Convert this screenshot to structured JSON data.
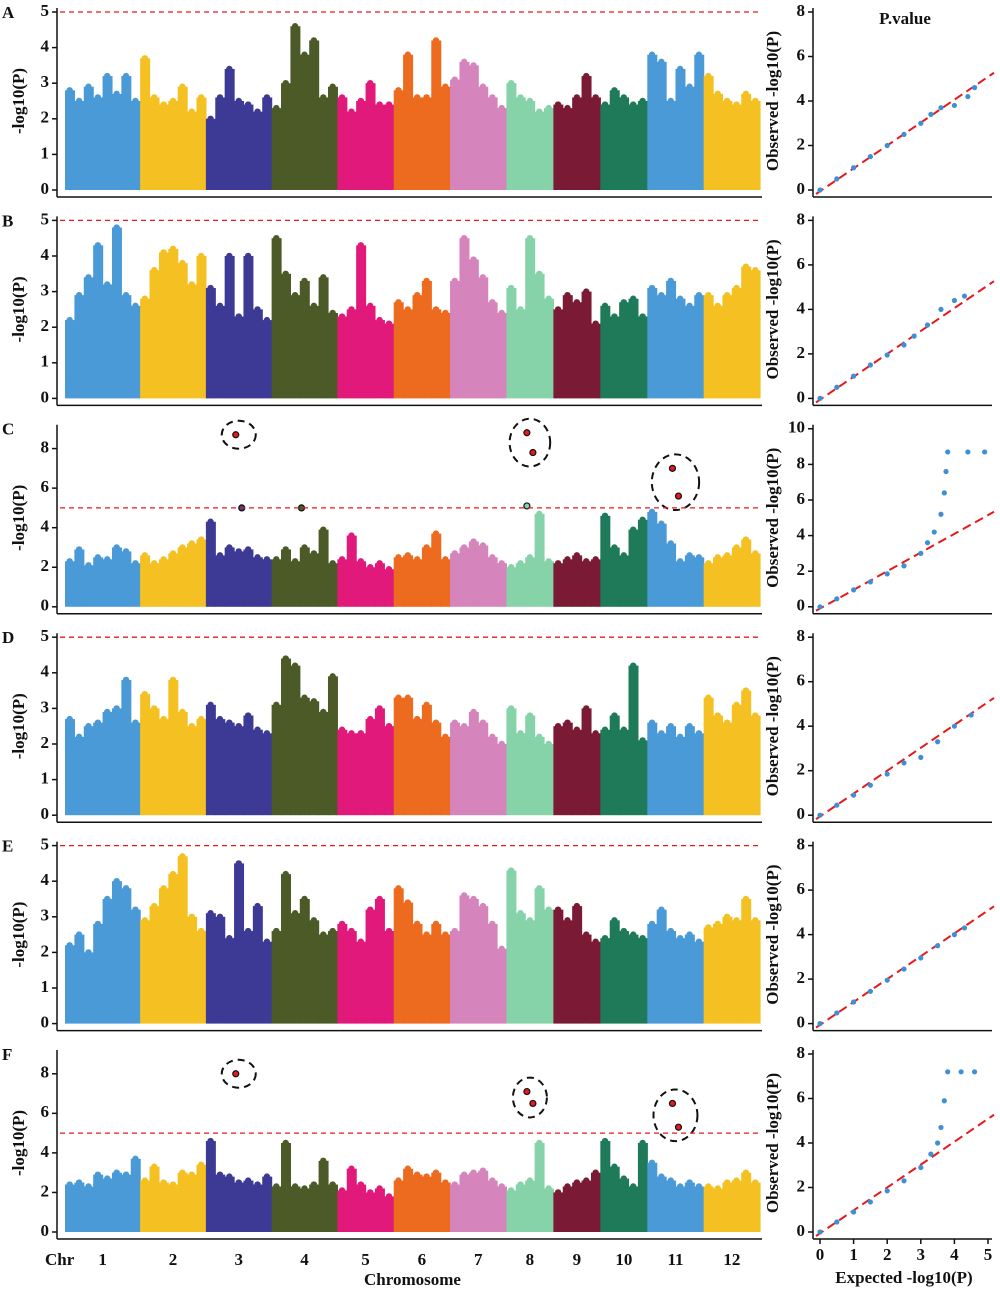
{
  "figure": {
    "qq_title": "P.value",
    "chromosome_label": "Chr",
    "x_axis_label": "Chromosome",
    "qq_x_label": "Expected -log10(P)",
    "chromosomes": [
      "1",
      "2",
      "3",
      "4",
      "5",
      "6",
      "7",
      "8",
      "9",
      "10",
      "11",
      "12"
    ],
    "colors": [
      "#4a9ad8",
      "#f5c022",
      "#3d3a95",
      "#4b5a27",
      "#e0197a",
      "#ec6b1e",
      "#d585bb",
      "#86d3a9",
      "#7a1a34",
      "#1f7a5a",
      "#4a9ad8",
      "#f5c022"
    ],
    "qq_xlim": [
      0,
      5
    ],
    "qq_xticks": [
      0,
      1,
      2,
      3,
      4,
      5
    ]
  },
  "chart_data": [
    {
      "type": "manhattan",
      "panel": "A",
      "y_label": "-log10(P)",
      "ylim": [
        0,
        5
      ],
      "yticks": [
        0,
        1,
        2,
        3,
        4,
        5
      ],
      "threshold": 5,
      "threshold_color": "#e41a1c",
      "series": [
        {
          "values": [
            2.8,
            2.5,
            2.9,
            2.6,
            3.2,
            2.7,
            3.2,
            2.5
          ]
        },
        {
          "values": [
            3.7,
            2.6,
            2.4,
            2.5,
            2.9,
            2.2,
            2.6
          ]
        },
        {
          "values": [
            2.0,
            2.6,
            3.4,
            2.5,
            2.4,
            2.2,
            2.6
          ]
        },
        {
          "values": [
            2.3,
            3.0,
            4.6,
            3.8,
            4.2,
            2.6,
            2.9
          ]
        },
        {
          "values": [
            2.6,
            2.2,
            2.5,
            3.0,
            2.4,
            2.4
          ]
        },
        {
          "values": [
            2.8,
            3.8,
            2.6,
            2.6,
            4.2,
            2.9
          ]
        },
        {
          "values": [
            3.1,
            3.6,
            3.5,
            2.9,
            2.6,
            2.3
          ]
        },
        {
          "values": [
            3.0,
            2.6,
            2.5,
            2.2,
            2.3
          ]
        },
        {
          "values": [
            2.4,
            2.3,
            2.6,
            3.2,
            2.6
          ]
        },
        {
          "values": [
            2.4,
            2.8,
            2.6,
            2.4,
            2.5
          ]
        },
        {
          "values": [
            3.8,
            3.6,
            2.5,
            3.4,
            2.9,
            3.8
          ]
        },
        {
          "values": [
            3.2,
            2.7,
            2.5,
            2.4,
            2.7,
            2.5
          ]
        }
      ]
    },
    {
      "type": "qq",
      "y_label": "Observed -log10(P)",
      "ylim": [
        0,
        8
      ],
      "yticks": [
        0,
        2,
        4,
        6,
        8
      ],
      "color": "#3f8fd6",
      "x": [
        0,
        0.5,
        1,
        1.5,
        2,
        2.5,
        3,
        3.3,
        3.6,
        4.0,
        4.4,
        4.6
      ],
      "y": [
        0,
        0.5,
        1,
        1.5,
        2,
        2.5,
        3,
        3.4,
        3.7,
        3.8,
        4.2,
        4.6
      ]
    },
    {
      "type": "manhattan",
      "panel": "B",
      "y_label": "-log10(P)",
      "ylim": [
        0,
        5
      ],
      "yticks": [
        0,
        1,
        2,
        3,
        4,
        5
      ],
      "threshold": 5,
      "threshold_color": "#e41a1c",
      "series": [
        {
          "values": [
            2.2,
            2.9,
            3.4,
            4.3,
            3.2,
            4.8,
            2.9,
            2.6
          ]
        },
        {
          "values": [
            2.8,
            3.6,
            4.1,
            4.2,
            3.8,
            3.2,
            4.0
          ]
        },
        {
          "values": [
            3.1,
            2.6,
            4.0,
            2.3,
            4.0,
            2.5,
            2.2
          ]
        },
        {
          "values": [
            4.5,
            3.5,
            2.9,
            3.3,
            2.6,
            3.4,
            2.4
          ]
        },
        {
          "values": [
            2.3,
            2.5,
            4.3,
            2.6,
            2.2,
            2.1
          ]
        },
        {
          "values": [
            2.7,
            2.5,
            2.9,
            3.3,
            2.5,
            2.4
          ]
        },
        {
          "values": [
            3.3,
            4.5,
            3.9,
            3.4,
            2.7,
            2.4
          ]
        },
        {
          "values": [
            3.1,
            2.5,
            4.5,
            3.5,
            2.8
          ]
        },
        {
          "values": [
            2.5,
            2.9,
            2.7,
            3.0,
            2.1
          ]
        },
        {
          "values": [
            2.6,
            2.3,
            2.7,
            2.8,
            2.3
          ]
        },
        {
          "values": [
            3.1,
            2.9,
            3.3,
            2.8,
            2.6,
            2.9
          ]
        },
        {
          "values": [
            2.9,
            2.6,
            2.9,
            3.1,
            3.7,
            3.6
          ]
        }
      ]
    },
    {
      "type": "qq",
      "y_label": "Observed -log10(P)",
      "ylim": [
        0,
        8
      ],
      "yticks": [
        0,
        2,
        4,
        6,
        8
      ],
      "color": "#3f8fd6",
      "x": [
        0,
        0.5,
        1,
        1.5,
        2,
        2.5,
        2.8,
        3.2,
        3.6,
        4.0,
        4.3
      ],
      "y": [
        0,
        0.5,
        1,
        1.5,
        1.95,
        2.4,
        2.8,
        3.3,
        4.0,
        4.4,
        4.6
      ]
    },
    {
      "type": "manhattan",
      "panel": "C",
      "y_label": "-log10(P)",
      "ylim": [
        0,
        9
      ],
      "yticks": [
        0,
        2,
        4,
        6,
        8
      ],
      "threshold": 5,
      "threshold_color": "#e41a1c",
      "series": [
        {
          "values": [
            2.3,
            2.9,
            2.1,
            2.5,
            2.4,
            3.0,
            2.8,
            2.2
          ]
        },
        {
          "values": [
            2.6,
            2.2,
            2.4,
            2.7,
            3.0,
            3.2,
            3.4
          ]
        },
        {
          "values": [
            4.3,
            2.6,
            3.0,
            2.8,
            2.9,
            2.5,
            2.4
          ]
        },
        {
          "values": [
            2.4,
            2.9,
            2.3,
            3.0,
            2.7,
            3.9,
            2.2
          ]
        },
        {
          "values": [
            2.4,
            3.6,
            2.3,
            2.0,
            2.2,
            1.9
          ]
        },
        {
          "values": [
            2.5,
            2.6,
            2.4,
            3.0,
            3.7,
            2.4
          ]
        },
        {
          "values": [
            2.7,
            3.0,
            3.3,
            3.1,
            2.5,
            2.2
          ]
        },
        {
          "values": [
            2.0,
            2.2,
            2.5,
            4.7,
            2.3
          ]
        },
        {
          "values": [
            2.2,
            2.4,
            2.6,
            2.3,
            2.4
          ]
        },
        {
          "values": [
            4.6,
            3.0,
            2.6,
            3.9,
            4.4
          ]
        },
        {
          "values": [
            4.8,
            4.2,
            3.2,
            2.3,
            2.6,
            2.5
          ]
        },
        {
          "values": [
            2.2,
            2.5,
            2.6,
            3.0,
            3.4,
            2.7
          ]
        }
      ],
      "hits": [
        [],
        [],
        [
          8.7,
          5.0
        ],
        [
          5.0
        ],
        [],
        [],
        [],
        [
          8.8,
          7.8,
          5.1
        ],
        [],
        [],
        [
          7.0,
          5.6
        ],
        []
      ]
    },
    {
      "type": "qq",
      "y_label": "Observed -log10(P)",
      "ylim": [
        0,
        10
      ],
      "yticks": [
        0,
        2,
        4,
        6,
        8,
        10
      ],
      "color": "#3f8fd6",
      "x": [
        0,
        0.5,
        1,
        1.5,
        2,
        2.5,
        3,
        3.2,
        3.4,
        3.6,
        3.7,
        3.75,
        3.8,
        4.4,
        4.9
      ],
      "y": [
        0,
        0.45,
        0.95,
        1.4,
        1.85,
        2.3,
        3.0,
        3.6,
        4.2,
        5.2,
        6.4,
        7.6,
        8.7,
        8.7,
        8.7
      ]
    },
    {
      "type": "manhattan",
      "panel": "D",
      "y_label": "-log10(P)",
      "ylim": [
        0,
        5
      ],
      "yticks": [
        0,
        1,
        2,
        3,
        4,
        5
      ],
      "threshold": 5,
      "threshold_color": "#e41a1c",
      "series": [
        {
          "values": [
            2.7,
            2.2,
            2.5,
            2.6,
            2.9,
            3.0,
            3.8,
            2.6
          ]
        },
        {
          "values": [
            3.4,
            3.0,
            2.7,
            3.8,
            2.9,
            2.5,
            2.7
          ]
        },
        {
          "values": [
            3.1,
            2.7,
            2.6,
            2.5,
            2.8,
            2.4,
            2.3
          ]
        },
        {
          "values": [
            3.1,
            4.4,
            4.2,
            3.3,
            3.2,
            2.9,
            3.9
          ]
        },
        {
          "values": [
            2.4,
            2.3,
            2.3,
            2.7,
            3.0,
            2.5
          ]
        },
        {
          "values": [
            3.3,
            3.3,
            2.7,
            3.1,
            2.6,
            2.2
          ]
        },
        {
          "values": [
            2.6,
            2.5,
            2.9,
            2.6,
            2.2,
            2.0
          ]
        },
        {
          "values": [
            3.0,
            2.3,
            2.8,
            2.2,
            2.0
          ]
        },
        {
          "values": [
            2.5,
            2.6,
            2.4,
            3.0,
            2.3
          ]
        },
        {
          "values": [
            2.4,
            2.8,
            2.4,
            4.2,
            2.1
          ]
        },
        {
          "values": [
            2.6,
            2.3,
            2.5,
            2.2,
            2.5,
            2.3
          ]
        },
        {
          "values": [
            3.3,
            2.8,
            2.6,
            3.1,
            3.5,
            2.8
          ]
        }
      ]
    },
    {
      "type": "qq",
      "y_label": "Observed -log10(P)",
      "ylim": [
        0,
        8
      ],
      "yticks": [
        0,
        2,
        4,
        6,
        8
      ],
      "color": "#3f8fd6",
      "x": [
        0,
        0.5,
        1,
        1.5,
        2,
        2.5,
        3,
        3.5,
        4.0,
        4.5
      ],
      "y": [
        0,
        0.45,
        0.9,
        1.35,
        1.85,
        2.35,
        2.6,
        3.3,
        4.0,
        4.5
      ]
    },
    {
      "type": "manhattan",
      "panel": "E",
      "y_label": "-log10(P)",
      "ylim": [
        0,
        5
      ],
      "yticks": [
        0,
        1,
        2,
        3,
        4,
        5
      ],
      "threshold": 5,
      "threshold_color": "#e41a1c",
      "series": [
        {
          "values": [
            2.2,
            2.5,
            2.0,
            2.8,
            3.5,
            4.0,
            3.8,
            3.2
          ]
        },
        {
          "values": [
            2.9,
            3.3,
            3.8,
            4.2,
            4.7,
            3.0,
            2.6
          ]
        },
        {
          "values": [
            3.1,
            3.0,
            2.4,
            4.5,
            2.6,
            3.3,
            2.3
          ]
        },
        {
          "values": [
            2.6,
            4.2,
            3.1,
            3.5,
            2.9,
            2.5,
            2.6
          ]
        },
        {
          "values": [
            2.8,
            2.6,
            2.3,
            3.2,
            3.5,
            2.6
          ]
        },
        {
          "values": [
            3.8,
            3.4,
            2.8,
            2.5,
            2.8,
            2.5
          ]
        },
        {
          "values": [
            2.6,
            3.6,
            3.5,
            3.3,
            2.8,
            2.1
          ]
        },
        {
          "values": [
            4.3,
            3.1,
            2.9,
            3.8,
            3.2
          ]
        },
        {
          "values": [
            3.2,
            2.9,
            3.3,
            2.5,
            2.3
          ]
        },
        {
          "values": [
            2.4,
            2.9,
            2.6,
            2.5,
            2.4
          ]
        },
        {
          "values": [
            2.8,
            3.2,
            2.6,
            2.4,
            2.5,
            2.3
          ]
        },
        {
          "values": [
            2.7,
            2.8,
            3.0,
            2.9,
            3.5,
            2.9
          ]
        }
      ]
    },
    {
      "type": "qq",
      "y_label": "Observed -log10(P)",
      "ylim": [
        0,
        8
      ],
      "yticks": [
        0,
        2,
        4,
        6,
        8
      ],
      "color": "#3f8fd6",
      "x": [
        0,
        0.5,
        1,
        1.5,
        2,
        2.5,
        3,
        3.5,
        4.0,
        4.3
      ],
      "y": [
        0,
        0.48,
        0.97,
        1.45,
        1.95,
        2.45,
        2.95,
        3.5,
        4.0,
        4.3
      ]
    },
    {
      "type": "manhattan",
      "panel": "F",
      "y_label": "-log10(P)",
      "ylim": [
        0,
        9
      ],
      "yticks": [
        0,
        2,
        4,
        6,
        8
      ],
      "threshold": 5,
      "threshold_color": "#e41a1c",
      "series": [
        {
          "values": [
            2.4,
            2.5,
            2.3,
            2.9,
            2.7,
            3.0,
            2.9,
            3.7
          ]
        },
        {
          "values": [
            2.6,
            3.3,
            2.5,
            2.4,
            3.0,
            2.9,
            3.4
          ]
        },
        {
          "values": [
            4.6,
            2.9,
            2.8,
            2.5,
            2.6,
            2.4,
            2.8
          ]
        },
        {
          "values": [
            2.3,
            4.5,
            2.3,
            2.2,
            2.4,
            3.6,
            2.4
          ]
        },
        {
          "values": [
            2.1,
            3.2,
            2.4,
            2.0,
            2.2,
            1.8
          ]
        },
        {
          "values": [
            2.6,
            3.2,
            2.9,
            2.8,
            3.0,
            2.5
          ]
        },
        {
          "values": [
            2.4,
            2.9,
            3.0,
            3.1,
            2.6,
            2.3
          ]
        },
        {
          "values": [
            2.1,
            2.4,
            2.6,
            4.5,
            2.2
          ]
        },
        {
          "values": [
            2.0,
            2.3,
            2.5,
            2.6,
            3.0
          ]
        },
        {
          "values": [
            4.6,
            3.3,
            2.7,
            2.3,
            4.5
          ]
        },
        {
          "values": [
            3.5,
            2.8,
            2.6,
            2.3,
            2.5,
            2.3
          ]
        },
        {
          "values": [
            2.3,
            2.2,
            2.5,
            2.6,
            3.0,
            2.5
          ]
        }
      ],
      "hits": [
        [],
        [],
        [
          8.0
        ],
        [],
        [],
        [],
        [],
        [
          7.1,
          6.5
        ],
        [],
        [],
        [
          6.5,
          5.3
        ],
        []
      ]
    },
    {
      "type": "qq",
      "y_label": "Observed -log10(P)",
      "ylim": [
        0,
        8
      ],
      "yticks": [
        0,
        2,
        4,
        6,
        8
      ],
      "color": "#3f8fd6",
      "x": [
        0,
        0.5,
        1,
        1.5,
        2,
        2.5,
        3,
        3.3,
        3.5,
        3.6,
        3.7,
        3.8,
        4.2,
        4.6
      ],
      "y": [
        0,
        0.45,
        0.9,
        1.35,
        1.85,
        2.3,
        2.9,
        3.5,
        4.0,
        4.7,
        5.9,
        7.2,
        7.2,
        7.2
      ]
    }
  ]
}
